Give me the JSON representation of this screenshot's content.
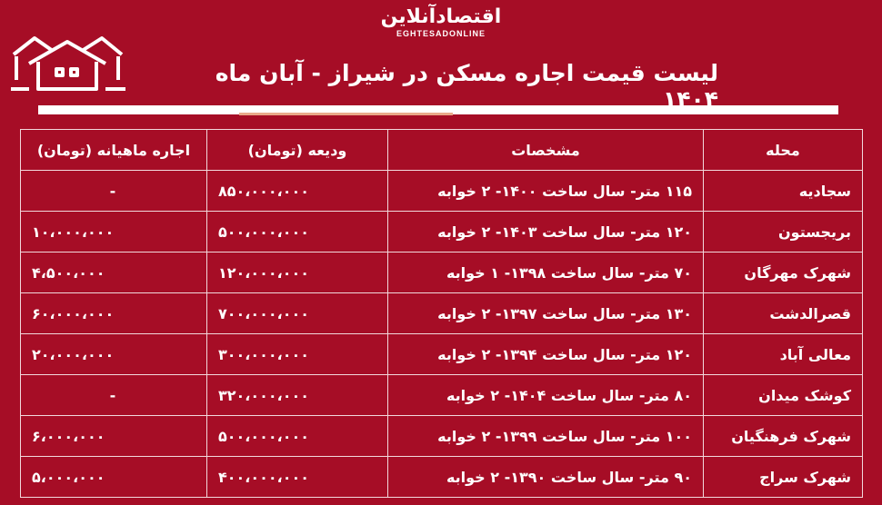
{
  "logo": {
    "fa": "اقتصادآنلاین",
    "en": "EGHTESADONLINE"
  },
  "title": "لیست قیمت اجاره مسکن در شیراز - آبان ماه ۱۴۰۴",
  "icons": {
    "header": "house-icon"
  },
  "colors": {
    "background": "#a60d26",
    "accent_line": "#e9a98a"
  },
  "table": {
    "headers": [
      "محله",
      "مشخصات",
      "ودیعه (تومان)",
      "اجاره ماهیانه (تومان)"
    ],
    "rows": [
      {
        "area": "سجادیه",
        "spec": "۱۱۵ متر- سال ساخت ۱۴۰۰- ۲ خوابه",
        "deposit": "۸۵۰،۰۰۰،۰۰۰",
        "rent": "-"
      },
      {
        "area": "بریجستون",
        "spec": "۱۲۰ متر- سال ساخت ۱۴۰۳- ۲ خوابه",
        "deposit": "۵۰۰،۰۰۰،۰۰۰",
        "rent": "۱۰،۰۰۰،۰۰۰"
      },
      {
        "area": "شهرک مهرگان",
        "spec": "۷۰ متر- سال ساخت ۱۳۹۸- ۱ خوابه",
        "deposit": "۱۲۰،۰۰۰،۰۰۰",
        "rent": "۴،۵۰۰،۰۰۰"
      },
      {
        "area": "قصرالدشت",
        "spec": "۱۳۰ متر- سال ساخت ۱۳۹۷- ۲ خوابه",
        "deposit": "۷۰۰،۰۰۰،۰۰۰",
        "rent": "۶۰،۰۰۰،۰۰۰"
      },
      {
        "area": "معالی آباد",
        "spec": "۱۲۰ متر- سال ساخت ۱۳۹۴- ۲ خوابه",
        "deposit": "۳۰۰،۰۰۰،۰۰۰",
        "rent": "۲۰،۰۰۰،۰۰۰"
      },
      {
        "area": "کوشک میدان",
        "spec": "۸۰ متر- سال ساخت ۱۴۰۴- ۲ خوابه",
        "deposit": "۳۲۰،۰۰۰،۰۰۰",
        "rent": "-"
      },
      {
        "area": "شهرک فرهنگیان",
        "spec": "۱۰۰ متر- سال ساخت ۱۳۹۹- ۲ خوابه",
        "deposit": "۵۰۰،۰۰۰،۰۰۰",
        "rent": "۶،۰۰۰،۰۰۰"
      },
      {
        "area": "شهرک سراج",
        "spec": "۹۰ متر- سال ساخت ۱۳۹۰- ۲ خوابه",
        "deposit": "۴۰۰،۰۰۰،۰۰۰",
        "rent": "۵،۰۰۰،۰۰۰"
      }
    ]
  }
}
